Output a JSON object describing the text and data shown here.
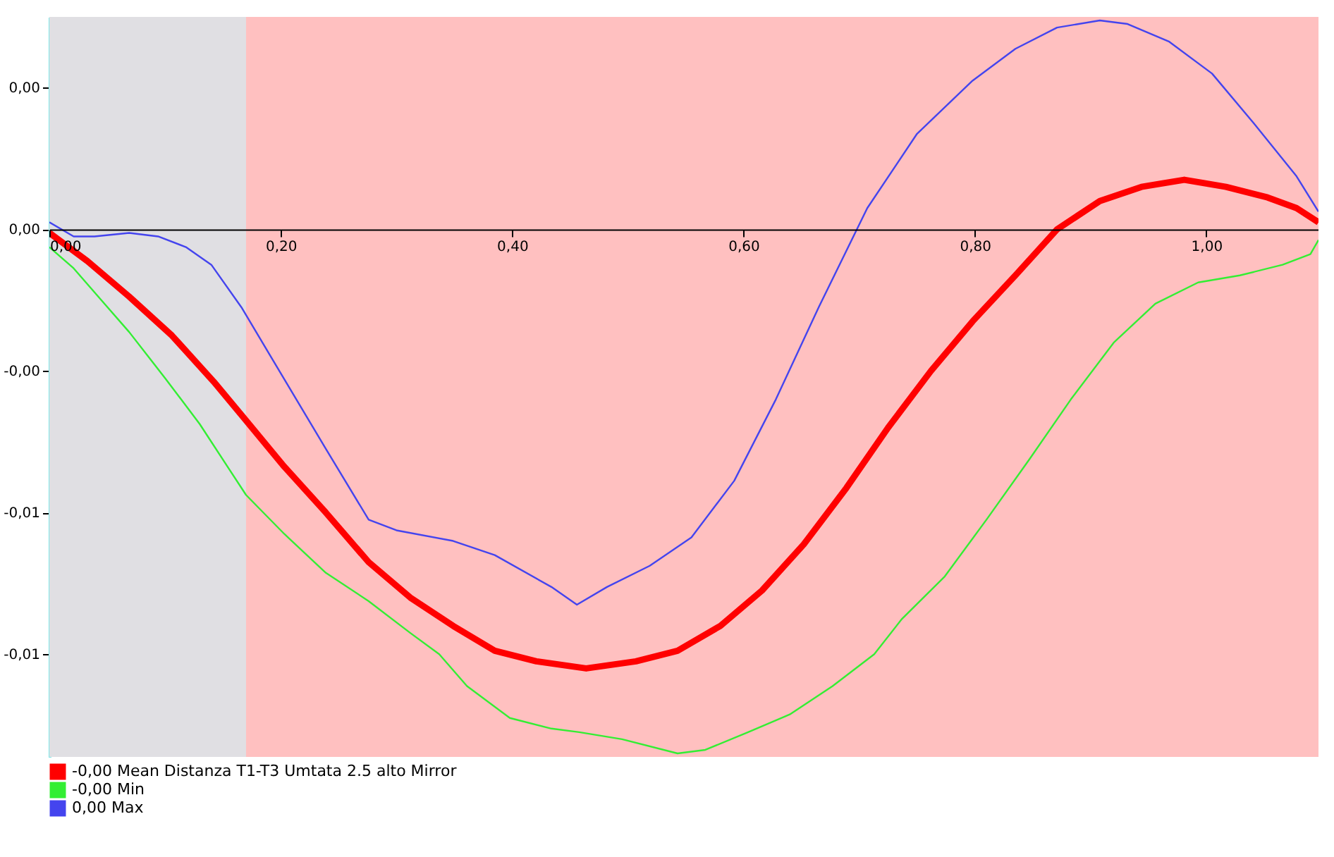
{
  "chart_data": {
    "type": "line",
    "xlim": [
      0,
      1.097
    ],
    "ylim": [
      -0.0149,
      0.006
    ],
    "xticks": [
      {
        "value": 0,
        "label": "0,00"
      },
      {
        "value": 0.2,
        "label": "0,20"
      },
      {
        "value": 0.4,
        "label": "0,40"
      },
      {
        "value": 0.6,
        "label": "0,60"
      },
      {
        "value": 0.8,
        "label": "0,80"
      },
      {
        "value": 1.0,
        "label": "1,00"
      }
    ],
    "yticks": [
      {
        "value": 0.004,
        "label": "0,00"
      },
      {
        "value": 0,
        "label": "0,00"
      },
      {
        "value": -0.004,
        "label": "-0,00"
      },
      {
        "value": -0.008,
        "label": "-0,01"
      },
      {
        "value": -0.012,
        "label": "-0,01"
      }
    ],
    "bands": [
      {
        "axis": "x",
        "from": 0,
        "to": 0.17,
        "color": "#e0dfe3"
      },
      {
        "axis": "x",
        "from": 0.17,
        "to": 1.097,
        "color": "#ffc0c0"
      }
    ],
    "series": [
      {
        "name": "-0,00 Mean Distanza T1-T3 Umtata 2.5 alto Mirror",
        "color": "#ff0000",
        "x": [
          0,
          0.033,
          0.069,
          0.106,
          0.142,
          0.17,
          0.203,
          0.239,
          0.276,
          0.312,
          0.349,
          0.385,
          0.421,
          0.464,
          0.507,
          0.543,
          0.58,
          0.616,
          0.652,
          0.689,
          0.725,
          0.762,
          0.798,
          0.835,
          0.871,
          0.908,
          0.944,
          0.981,
          1.017,
          1.053,
          1.078,
          1.097
        ],
        "values": [
          -0.0001,
          -0.0009,
          -0.0019,
          -0.003,
          -0.0043,
          -0.0054,
          -0.0067,
          -0.008,
          -0.0094,
          -0.0104,
          -0.0112,
          -0.0119,
          -0.0122,
          -0.0124,
          -0.0122,
          -0.0119,
          -0.0112,
          -0.0102,
          -0.0089,
          -0.0073,
          -0.0056,
          -0.004,
          -0.0026,
          -0.0013,
          0.0,
          0.0008,
          0.0012,
          0.0014,
          0.0012,
          0.0009,
          0.0006,
          0.0002
        ]
      },
      {
        "name": "-0,00 Min",
        "color": "#33ee33",
        "x": [
          0,
          0.021,
          0.045,
          0.069,
          0.1,
          0.13,
          0.154,
          0.17,
          0.203,
          0.239,
          0.276,
          0.312,
          0.337,
          0.361,
          0.398,
          0.434,
          0.458,
          0.495,
          0.543,
          0.567,
          0.604,
          0.64,
          0.677,
          0.713,
          0.737,
          0.774,
          0.81,
          0.847,
          0.883,
          0.92,
          0.956,
          0.993,
          1.029,
          1.066,
          1.09,
          1.097
        ],
        "values": [
          -0.0005,
          -0.0011,
          -0.002,
          -0.0029,
          -0.0042,
          -0.0055,
          -0.0067,
          -0.0075,
          -0.0086,
          -0.0097,
          -0.0105,
          -0.0114,
          -0.012,
          -0.0129,
          -0.0138,
          -0.0141,
          -0.0142,
          -0.0144,
          -0.0148,
          -0.0147,
          -0.0142,
          -0.0137,
          -0.0129,
          -0.012,
          -0.011,
          -0.0098,
          -0.0082,
          -0.0065,
          -0.0048,
          -0.0032,
          -0.0021,
          -0.0015,
          -0.0013,
          -0.001,
          -0.0007,
          -0.0003
        ]
      },
      {
        "name": "0,00 Max",
        "color": "#4444ee",
        "x": [
          0,
          0.021,
          0.039,
          0.069,
          0.094,
          0.118,
          0.14,
          0.166,
          0.197,
          0.239,
          0.276,
          0.3,
          0.349,
          0.385,
          0.434,
          0.456,
          0.482,
          0.519,
          0.555,
          0.592,
          0.628,
          0.665,
          0.707,
          0.75,
          0.798,
          0.835,
          0.871,
          0.908,
          0.932,
          0.968,
          1.005,
          1.041,
          1.078,
          1.097
        ],
        "values": [
          0.0002,
          -0.0002,
          -0.0002,
          -0.0001,
          -0.0002,
          -0.0005,
          -0.001,
          -0.0022,
          -0.0039,
          -0.0062,
          -0.0082,
          -0.0085,
          -0.0088,
          -0.0092,
          -0.0101,
          -0.0106,
          -0.0101,
          -0.0095,
          -0.0087,
          -0.0071,
          -0.0048,
          -0.0022,
          0.0006,
          0.0027,
          0.0042,
          0.0051,
          0.0057,
          0.0059,
          0.0058,
          0.0053,
          0.0044,
          0.003,
          0.0015,
          0.0005
        ]
      }
    ],
    "grid": false,
    "legend": "bottom left"
  }
}
